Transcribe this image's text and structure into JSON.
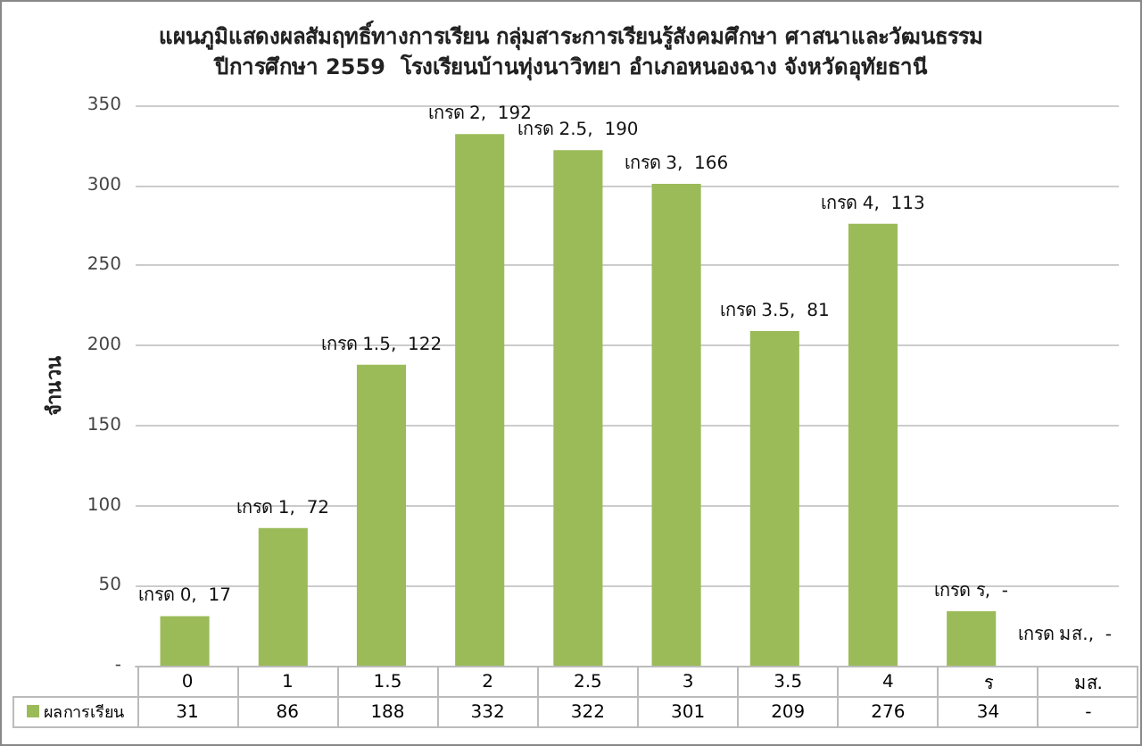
{
  "chart_data": {
    "type": "bar",
    "title": "แผนภูมิแสดงผลสัมฤทธิ์ทางการเรียน กลุ่มสาระการเรียนรู้สังคมศึกษา ศาสนาและวัฒนธรรม\nปีการศึกษา 2559  โรงเรียนบ้านทุ่งนาวิทยา อำเภอหนองฉาง จังหวัดอุทัยธานี",
    "ylabel": "จำนวน",
    "categories": [
      "0",
      "1",
      "1.5",
      "2",
      "2.5",
      "3",
      "3.5",
      "4",
      "ร",
      "มส."
    ],
    "series": [
      {
        "name": "ผลการเรียน",
        "color": "#9bbb59",
        "values": [
          31,
          86,
          188,
          332,
          322,
          301,
          209,
          276,
          34,
          null
        ],
        "value_labels": [
          "31",
          "86",
          "188",
          "332",
          "322",
          "301",
          "209",
          "276",
          "34",
          "-"
        ]
      }
    ],
    "ylim": [
      0,
      350
    ],
    "yticks": [
      {
        "value": 0,
        "label": "-"
      },
      50,
      100,
      150,
      200,
      250,
      300,
      350
    ],
    "grid": "y",
    "legend": "bottom left",
    "annotations": [
      {
        "text": "เกรด 0,  17",
        "x": "0",
        "y": 31
      },
      {
        "text": "เกรด 1,  72",
        "x": "1",
        "y": 86
      },
      {
        "text": "เกรด 1.5,  122",
        "x": "1.5",
        "y": 188
      },
      {
        "text": "เกรด 2,  192",
        "x": "2",
        "y": 332
      },
      {
        "text": "เกรด 2.5,  190",
        "x": "2.5",
        "y": 322
      },
      {
        "text": "เกรด 3,  166",
        "x": "3",
        "y": 301
      },
      {
        "text": "เกรด 3.5,  81",
        "x": "3.5",
        "y": 209
      },
      {
        "text": "เกรด 4,  113",
        "x": "4",
        "y": 276
      },
      {
        "text": "เกรด ร,  -",
        "x": "ร",
        "y": 34
      },
      "เกรด มส.,  -"
    ]
  }
}
